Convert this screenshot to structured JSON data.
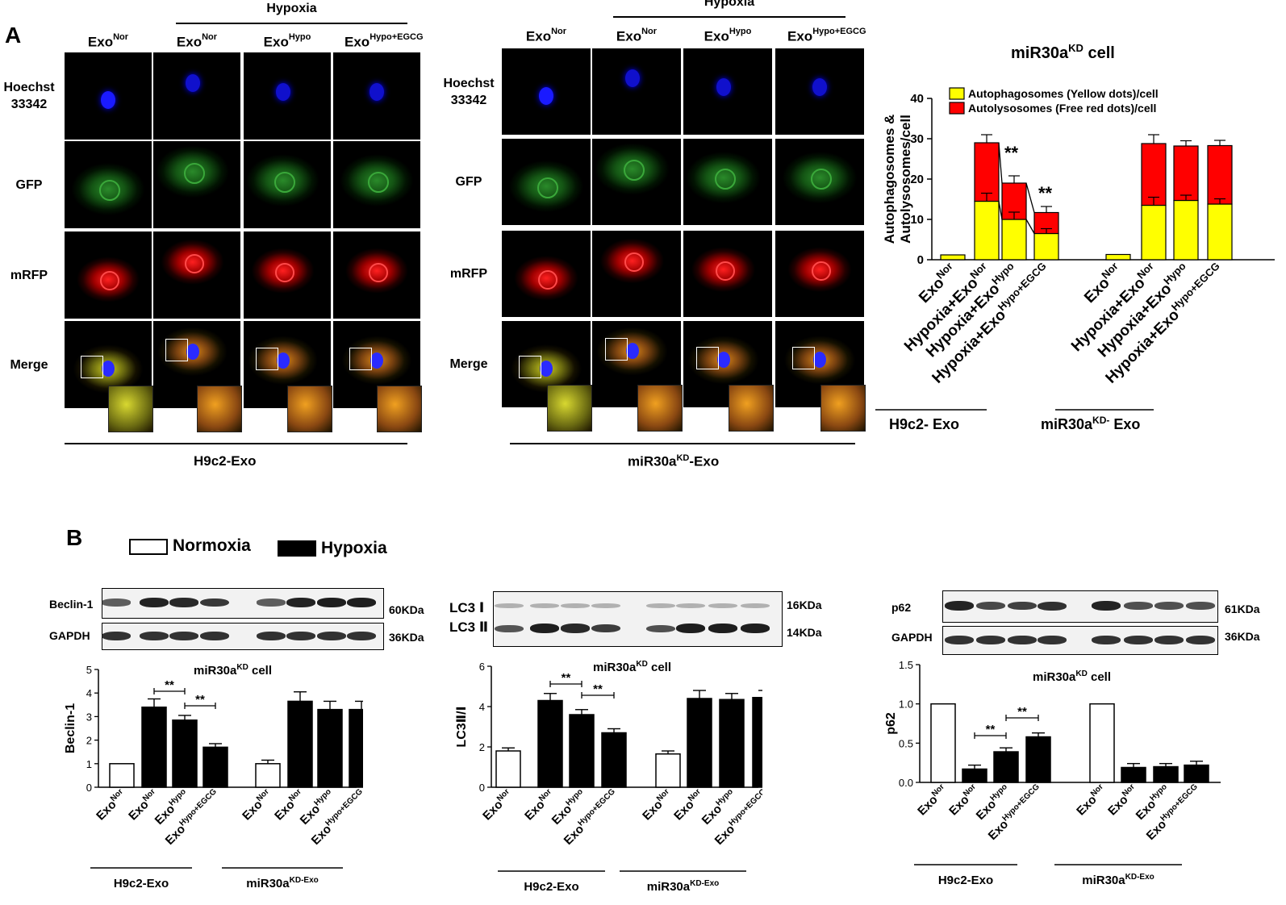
{
  "panel_a": {
    "letter": "A",
    "left": {
      "hypoxia_label": "Hypoxia",
      "columns": [
        {
          "base": "Exo",
          "sup": "Nor"
        },
        {
          "base": "Exo",
          "sup": "Nor"
        },
        {
          "base": "Exo",
          "sup": "Hypo"
        },
        {
          "base": "Exo",
          "sup": "Hypo+EGCG"
        }
      ],
      "rows": [
        "Hoechst 33342",
        "GFP",
        "mRFP",
        "Merge"
      ],
      "group_base": "H9c2-Exo"
    },
    "right": {
      "hypoxia_label": "Hypoxia",
      "columns": [
        {
          "base": "Exo",
          "sup": "Nor"
        },
        {
          "base": "Exo",
          "sup": "Nor"
        },
        {
          "base": "Exo",
          "sup": "Hypo"
        },
        {
          "base": "Exo",
          "sup": "Hypo+EGCG"
        }
      ],
      "rows": [
        "Hoechst 33342",
        "GFP",
        "mRFP",
        "Merge"
      ],
      "group_base": "miR30a",
      "group_sup": "KD",
      "group_suffix": "-Exo"
    }
  },
  "panel_b": {
    "letter": "B",
    "legend": [
      {
        "label": "Normoxia",
        "color": "#ffffff"
      },
      {
        "label": "Hypoxia",
        "color": "#000000"
      }
    ],
    "blots": [
      {
        "labels": [
          "Beclin-1",
          "GAPDH"
        ],
        "sizes": [
          "60KDa",
          "36KDa"
        ]
      },
      {
        "labels": [
          "LC3 Ⅰ",
          "LC3 Ⅱ"
        ],
        "sizes": [
          "16KDa",
          "14KDa"
        ]
      },
      {
        "labels": [
          "p62",
          "GAPDH"
        ],
        "sizes": [
          "61KDa",
          "36KDa"
        ]
      }
    ]
  },
  "chart_data": [
    {
      "type": "bar",
      "title": "miR30a^KD cell",
      "ylabel": "Autophagosomes & Autolysosomes/cell",
      "ylim": [
        0,
        40
      ],
      "yticks": [
        0,
        10,
        20,
        30,
        40
      ],
      "categories": [
        "Exo^Nor",
        "Hypoxia+Exo^Nor",
        "Hypoxia+Exo^Hypo",
        "Hypoxia+Exo^Hypo+EGCG",
        "Exo^Nor",
        "Hypoxia+Exo^Nor",
        "Hypoxia+Exo^Hypo",
        "Hypoxia+Exo^Hypo+EGCG"
      ],
      "groups": [
        "H9c2- Exo",
        "miR30a^KD- Exo"
      ],
      "stacked": true,
      "series": [
        {
          "name": "Autophagosomes (Yellow dots)/cell",
          "color": "#ffff00",
          "values": [
            1.2,
            14.5,
            10,
            6.5,
            1.3,
            13.5,
            14.7,
            13.8
          ],
          "err": [
            0,
            2,
            1.8,
            1.2,
            0,
            2,
            1.3,
            1.3
          ]
        },
        {
          "name": "Autolysosomes (Free red dots)/cell",
          "color": "#ff0000",
          "values": [
            0,
            14.5,
            9,
            5.2,
            0,
            15.3,
            13.5,
            14.5
          ],
          "err": [
            0,
            2,
            1.8,
            1.5,
            0,
            2.2,
            1.3,
            1.3
          ]
        }
      ],
      "significance": [
        "**",
        "**"
      ]
    },
    {
      "type": "bar",
      "title": "miR30a^KD cell",
      "ylabel": "Beclin-1",
      "ylim": [
        0,
        5
      ],
      "yticks": [
        0,
        1,
        2,
        3,
        4,
        5
      ],
      "categories": [
        "Exo^Nor",
        "Exo^Nor",
        "Exo^Hypo",
        "Exo^Hypo+EGCG",
        "Exo^Nor",
        "Exo^Nor",
        "Exo^Hypo",
        "Exo^Hypo+EGCG"
      ],
      "groups": [
        "H9c2-Exo",
        "miR30a^KD-Exo"
      ],
      "fill": [
        "white",
        "black",
        "black",
        "black",
        "white",
        "black",
        "black",
        "black"
      ],
      "values": [
        1.0,
        3.4,
        2.85,
        1.7,
        1.0,
        3.65,
        3.3,
        3.3
      ],
      "err": [
        0,
        0.35,
        0.2,
        0.15,
        0.15,
        0.4,
        0.35,
        0.35
      ],
      "significance": [
        "**",
        "**"
      ]
    },
    {
      "type": "bar",
      "title": "miR30a^KD cell",
      "ylabel": "LC3Ⅱ/Ⅰ",
      "ylim": [
        0,
        6
      ],
      "yticks": [
        0,
        2,
        4,
        6
      ],
      "categories": [
        "Exo^Nor",
        "Exo^Nor",
        "Exo^Hypo",
        "Exo^Hypo+EGCG",
        "Exo^Nor",
        "Exo^Nor",
        "Exo^Hypo",
        "Exo^Hypo+EGCG"
      ],
      "groups": [
        "H9c2-Exo",
        "miR30a^KD-Exo"
      ],
      "fill": [
        "white",
        "black",
        "black",
        "black",
        "white",
        "black",
        "black",
        "black"
      ],
      "values": [
        1.8,
        4.3,
        3.6,
        2.7,
        1.65,
        4.4,
        4.35,
        4.45
      ],
      "err": [
        0.15,
        0.35,
        0.25,
        0.2,
        0.15,
        0.4,
        0.3,
        0.35
      ],
      "significance": [
        "**",
        "**"
      ]
    },
    {
      "type": "bar",
      "title": "miR30a^KD cell",
      "ylabel": "p62",
      "ylim": [
        0,
        1.5
      ],
      "yticks": [
        0.0,
        0.5,
        1.0,
        1.5
      ],
      "categories": [
        "Exo^Nor",
        "Exo^Nor",
        "Exo^Hypo",
        "Exo^Hypo+EGCG",
        "Exo^Nor",
        "Exo^Nor",
        "Exo^Hypo",
        "Exo^Hypo+EGCG"
      ],
      "groups": [
        "H9c2-Exo",
        "miR30a^KD-Exo"
      ],
      "fill": [
        "white",
        "black",
        "black",
        "black",
        "white",
        "black",
        "black",
        "black"
      ],
      "values": [
        1.0,
        0.17,
        0.39,
        0.58,
        1.0,
        0.19,
        0.2,
        0.22
      ],
      "err": [
        0,
        0.05,
        0.05,
        0.05,
        0,
        0.05,
        0.04,
        0.05
      ],
      "significance": [
        "**",
        "**"
      ]
    }
  ]
}
